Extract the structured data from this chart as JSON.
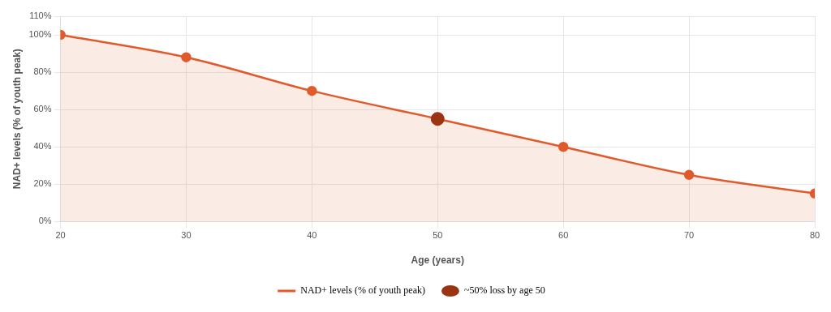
{
  "chart_data": {
    "type": "area",
    "xlabel": "Age (years)",
    "ylabel": "NAD+ levels (% of youth peak)",
    "xlim": [
      20,
      80
    ],
    "xticks": [
      20,
      30,
      40,
      50,
      60,
      70,
      80
    ],
    "ylim": [
      0,
      110
    ],
    "yticks": [
      {
        "value": 0,
        "label": "0%"
      },
      {
        "value": 20,
        "label": "20%"
      },
      {
        "value": 40,
        "label": "40%"
      },
      {
        "value": 60,
        "label": "60%"
      },
      {
        "value": 80,
        "label": "80%"
      },
      {
        "value": 100,
        "label": "100%"
      },
      {
        "value": 110,
        "label": "110%"
      }
    ],
    "grid": true,
    "legend": "bottom",
    "marker": "circle",
    "series": [
      {
        "name": "NAD+ levels (% of youth peak)",
        "color": "#e05a2b",
        "x": [
          20,
          30,
          40,
          50,
          60,
          70,
          80
        ],
        "values": [
          100,
          88,
          70,
          55,
          40,
          25,
          15
        ]
      },
      {
        "name": "~50% loss by age 50",
        "type": "scatter",
        "color": "#9a3412",
        "x": [
          50
        ],
        "values": [
          55
        ]
      }
    ]
  }
}
